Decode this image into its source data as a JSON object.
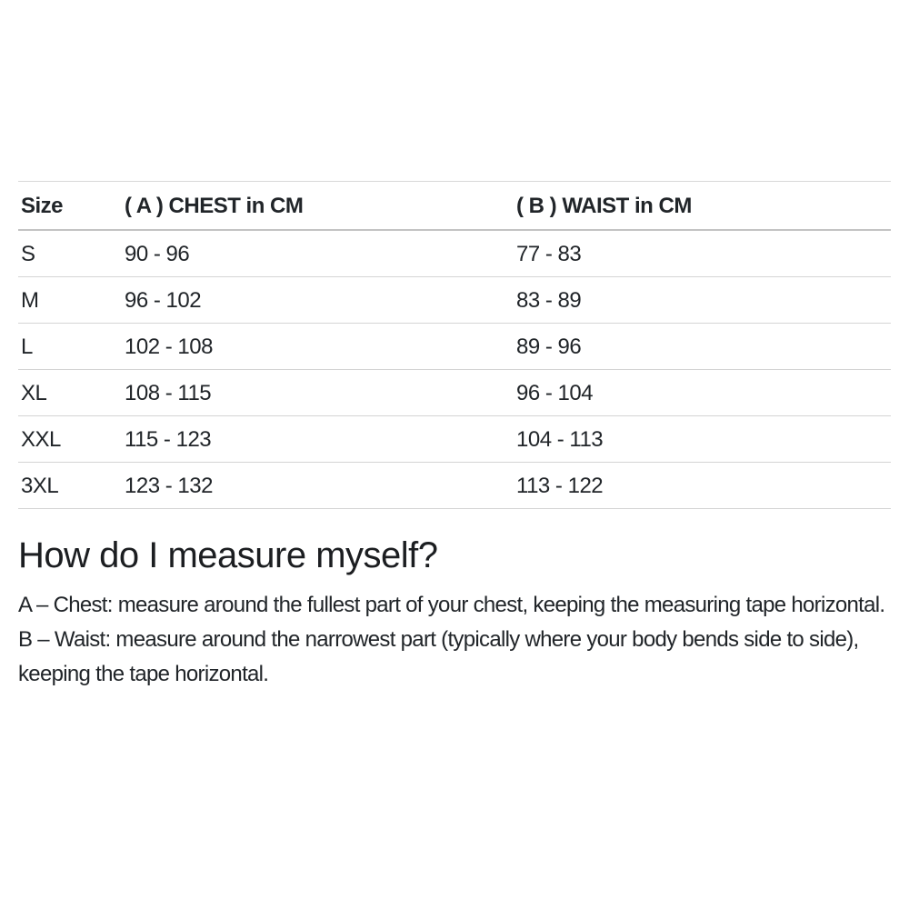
{
  "size_chart": {
    "columns": [
      "Size",
      "( A ) CHEST in CM",
      "( B ) WAIST in CM"
    ],
    "rows": [
      {
        "size": "S",
        "chest": "90 - 96",
        "waist": "77 - 83"
      },
      {
        "size": "M",
        "chest": "96 - 102",
        "waist": "83 - 89"
      },
      {
        "size": "L",
        "chest": "102 - 108",
        "waist": "89 - 96"
      },
      {
        "size": "XL",
        "chest": "108 - 115",
        "waist": "96 - 104"
      },
      {
        "size": "XXL",
        "chest": "115 - 123",
        "waist": "104 - 113"
      },
      {
        "size": "3XL",
        "chest": "123 - 132",
        "waist": "113 - 122"
      }
    ]
  },
  "measure_section": {
    "heading": "How do I measure myself?",
    "paragraphs": [
      "A – Chest: measure around the fullest part of your chest, keeping the measuring tape horizontal.",
      "B – Waist: measure around the narrowest part (typically where your body bends side to side), keeping the tape horizontal."
    ]
  },
  "colors": {
    "text": "#212529",
    "row_border": "#d4d4d4",
    "header_border": "#c3c3c3",
    "background": "#ffffff"
  }
}
